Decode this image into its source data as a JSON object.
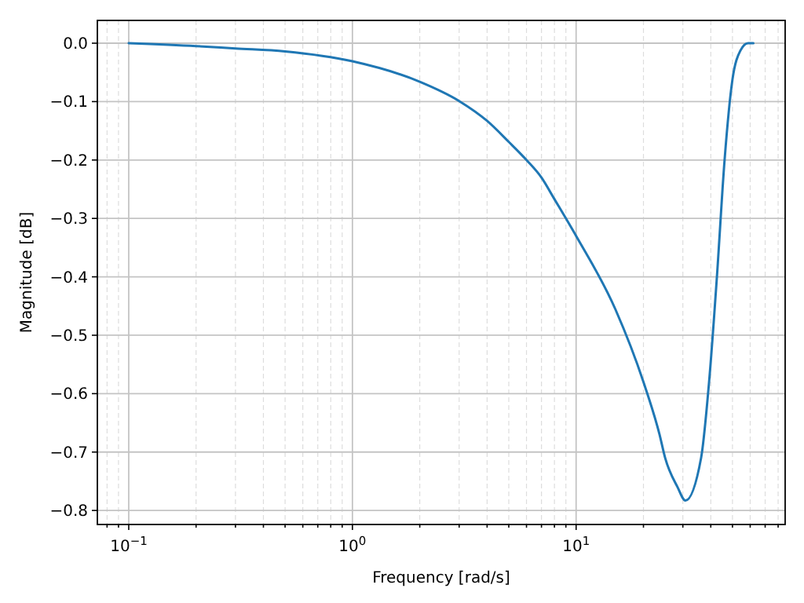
{
  "chart_data": {
    "type": "line",
    "xlabel": "Frequency [rad/s]",
    "ylabel": "Magnitude [dB]",
    "log": "x",
    "grid": true,
    "marker": "none",
    "line_style": "solid",
    "xlim": [
      0.0724,
      86
    ],
    "ylim": [
      -0.824,
      0.039
    ],
    "xticks": [
      {
        "value": 0.08,
        "label": null
      },
      {
        "value": 0.09,
        "label": null
      },
      {
        "value": 0.1,
        "label": "10$^{−1}$"
      },
      {
        "value": 0.2,
        "label": null
      },
      {
        "value": 0.3,
        "label": null
      },
      {
        "value": 0.4,
        "label": null
      },
      {
        "value": 0.5,
        "label": null
      },
      {
        "value": 0.6,
        "label": null
      },
      {
        "value": 0.7,
        "label": null
      },
      {
        "value": 0.8,
        "label": null
      },
      {
        "value": 0.9,
        "label": null
      },
      {
        "value": 1,
        "label": "10$^{0}$"
      },
      {
        "value": 2,
        "label": null
      },
      {
        "value": 3,
        "label": null
      },
      {
        "value": 4,
        "label": null
      },
      {
        "value": 5,
        "label": null
      },
      {
        "value": 6,
        "label": null
      },
      {
        "value": 7,
        "label": null
      },
      {
        "value": 8,
        "label": null
      },
      {
        "value": 9,
        "label": null
      },
      {
        "value": 10,
        "label": "10$^{1}$"
      },
      {
        "value": 20,
        "label": null
      },
      {
        "value": 30,
        "label": null
      },
      {
        "value": 40,
        "label": null
      },
      {
        "value": 50,
        "label": null
      },
      {
        "value": 60,
        "label": null
      },
      {
        "value": 70,
        "label": null
      },
      {
        "value": 80,
        "label": null
      }
    ],
    "yticks": [
      {
        "value": 0,
        "label": "0.0"
      },
      {
        "value": -0.1,
        "label": "−0.1"
      },
      {
        "value": -0.2,
        "label": "−0.2"
      },
      {
        "value": -0.3,
        "label": "−0.3"
      },
      {
        "value": -0.4,
        "label": "−0.4"
      },
      {
        "value": -0.5,
        "label": "−0.5"
      },
      {
        "value": -0.6,
        "label": "−0.6"
      },
      {
        "value": -0.7,
        "label": "−0.7"
      },
      {
        "value": -0.8,
        "label": "−0.8"
      }
    ],
    "x": [
      0.1,
      0.2,
      0.3,
      0.5,
      1,
      2,
      3,
      4,
      5,
      6,
      7,
      8,
      10,
      15,
      20,
      23.6,
      25,
      28.4,
      30.8,
      36.2,
      39.3,
      42.6,
      46.1,
      50,
      54.2,
      58.7,
      62
    ],
    "series": [
      {
        "color": "#1f77b4",
        "values": [
          0,
          -0.005,
          -0.009,
          -0.014,
          -0.031,
          -0.066,
          -0.099,
          -0.133,
          -0.169,
          -0.2,
          -0.23,
          -0.267,
          -0.33,
          -0.456,
          -0.58,
          -0.67,
          -0.71,
          -0.76,
          -0.783,
          -0.71,
          -0.58,
          -0.4,
          -0.2,
          -0.062,
          -0.013,
          0,
          0
        ]
      }
    ]
  }
}
